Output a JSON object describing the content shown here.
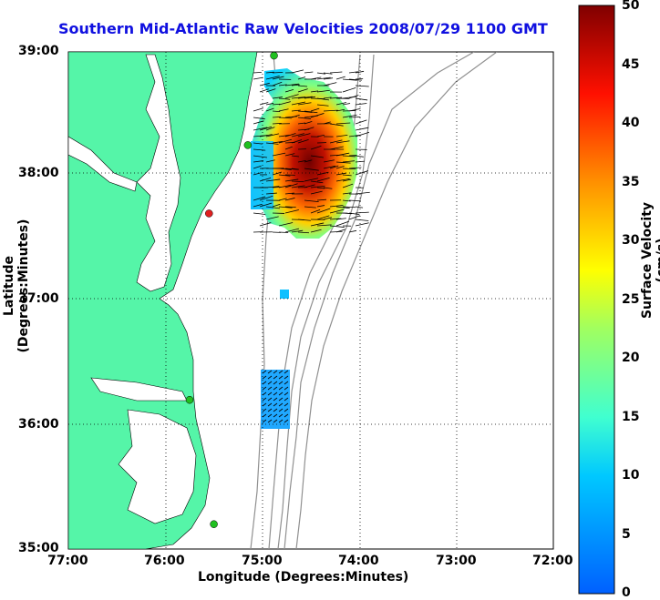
{
  "title": "Southern Mid-Atlantic Raw Velocities 2008/07/29 1100 GMT",
  "x_axis": {
    "label": "Longitude (Degrees:Minutes)",
    "ticks": [
      "77:00",
      "76:00",
      "75:00",
      "74:00",
      "73:00",
      "72:00"
    ]
  },
  "y_axis": {
    "label": "Latitude (Degrees:Minutes)",
    "ticks": [
      "39:00",
      "38:00",
      "37:00",
      "36:00",
      "35:00"
    ]
  },
  "colorbar": {
    "label": "Surface Velocity (cm/s)",
    "ticks": [
      "50",
      "45",
      "40",
      "35",
      "30",
      "25",
      "20",
      "15",
      "10",
      "5",
      "0"
    ],
    "min": 0,
    "max": 50
  },
  "colors": {
    "land": "#55f5a8",
    "title": "#1010e0",
    "station": "#20c020",
    "station_alt": "#e02020"
  },
  "chart_data": {
    "type": "map",
    "lon_range": [
      -77,
      -72
    ],
    "lat_range": [
      35,
      39
    ],
    "grid": true,
    "stations": [
      {
        "lon": -74.88,
        "lat": 38.97,
        "color": "green"
      },
      {
        "lon": -75.15,
        "lat": 38.25,
        "color": "green"
      },
      {
        "lon": -75.55,
        "lat": 37.7,
        "color": "red"
      },
      {
        "lon": -75.75,
        "lat": 36.2,
        "color": "green"
      },
      {
        "lon": -75.5,
        "lat": 35.2,
        "color": "green"
      }
    ]
  }
}
